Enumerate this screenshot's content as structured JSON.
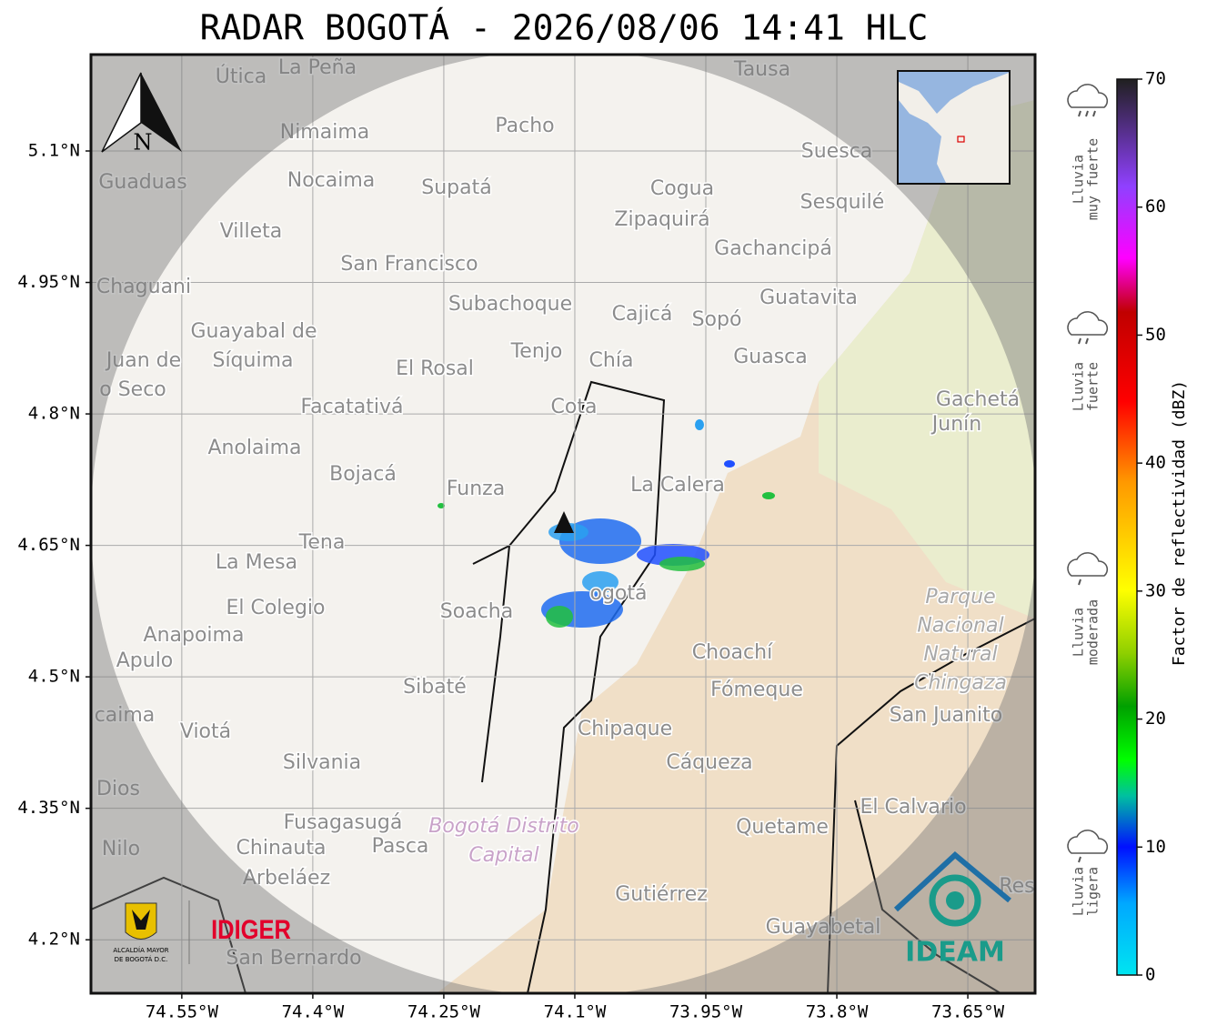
{
  "title": "RADAR BOGOTÁ - 2026/08/06 14:41 HLC",
  "map": {
    "xlim": [
      -74.654,
      -73.573
    ],
    "ylim": [
      4.139,
      5.21
    ],
    "xticks": [
      {
        "value": -74.55,
        "label": "74.55°W"
      },
      {
        "value": -74.4,
        "label": "74.4°W"
      },
      {
        "value": -74.25,
        "label": "74.25°W"
      },
      {
        "value": -74.1,
        "label": "74.1°W"
      },
      {
        "value": -73.95,
        "label": "73.95°W"
      },
      {
        "value": -73.8,
        "label": "73.8°W"
      },
      {
        "value": -73.65,
        "label": "73.65°W"
      }
    ],
    "yticks": [
      {
        "value": 5.1,
        "label": "5.1°N"
      },
      {
        "value": 4.95,
        "label": "4.95°N"
      },
      {
        "value": 4.8,
        "label": "4.8°N"
      },
      {
        "value": 4.65,
        "label": "4.65°N"
      },
      {
        "value": 4.5,
        "label": "4.5°N"
      },
      {
        "value": 4.35,
        "label": "4.35°N"
      },
      {
        "value": 4.2,
        "label": "4.2°N"
      }
    ],
    "north_label": "N",
    "places": [
      "La Peña",
      "Útica",
      "Tausa",
      "Pacho",
      "Nimaima",
      "Suesca",
      "Guaduas",
      "Nocaima",
      "Supatá",
      "Cogua",
      "Sesquilé",
      "Zipaquirá",
      "Villeta",
      "Gachancipá",
      "San Francisco",
      "Chaguani",
      "Guatavita",
      "Subachoque",
      "Cajicá",
      "Sopó",
      "Guayabal de",
      "Síquima",
      "Tenjo",
      "Chía",
      "Guasca",
      "Juan de",
      "o Seco",
      "El Rosal",
      "Facatativá",
      "Cota",
      "Gachetá",
      "Junín",
      "Anolaima",
      "Bojacá",
      "Funza",
      "La Calera",
      "Tena",
      "La Mesa",
      "El Colegio",
      "Soacha",
      "ogotá",
      "Anapoima",
      "Apulo",
      "Choachí",
      "Fómeque",
      "Sibaté",
      "San Juanito",
      "caima",
      "Viotá",
      "Chipaque",
      "Cáqueza",
      "Silvania",
      "Dios",
      "El Calvario",
      "Fusagasugá",
      "Quetame",
      "Nilo",
      "Chinauta",
      "Pasca",
      "Arbeláez",
      "Gutiérrez",
      "Res",
      "Guayabetal",
      "San Bernardo"
    ],
    "park_label": [
      "Parque",
      "Nacional",
      "Natural",
      "Chingaza"
    ],
    "district_label": [
      "Bogotá Distrito",
      "Capital"
    ]
  },
  "colorbar": {
    "label": "Factor de reflectividad (dBZ)",
    "lim": [
      0,
      70
    ],
    "ticks": [
      0,
      10,
      20,
      30,
      40,
      50,
      60,
      70
    ]
  },
  "rain_levels": [
    [
      "Lluvia",
      "muy fuerte"
    ],
    [
      "Lluvia",
      "fuerte"
    ],
    [
      "Lluvia",
      "moderada"
    ],
    [
      "Lluvia",
      "ligera"
    ]
  ],
  "logos": {
    "alcaldia": [
      "ALCALDÍA MAYOR",
      "DE BOGOTÁ D.C."
    ],
    "idiger": "IDIGER",
    "ideam": "IDEAM"
  }
}
